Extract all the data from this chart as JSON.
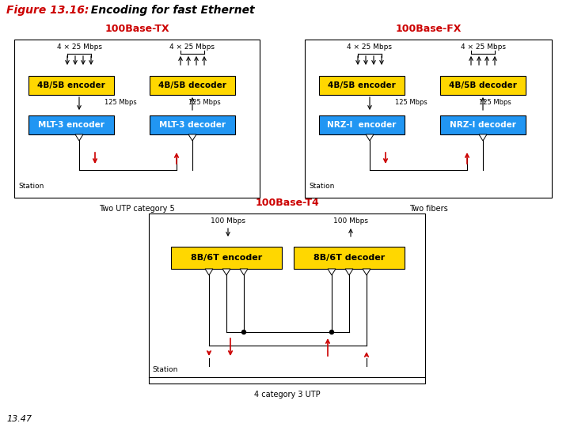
{
  "yellow": "#FFD700",
  "blue": "#2196F3",
  "red": "#CC0000",
  "bg": "#FFFFFF",
  "subtitle_tx": "100Base-TX",
  "subtitle_fx": "100Base-FX",
  "subtitle_t4": "100Base-T4",
  "footer": "13.47"
}
